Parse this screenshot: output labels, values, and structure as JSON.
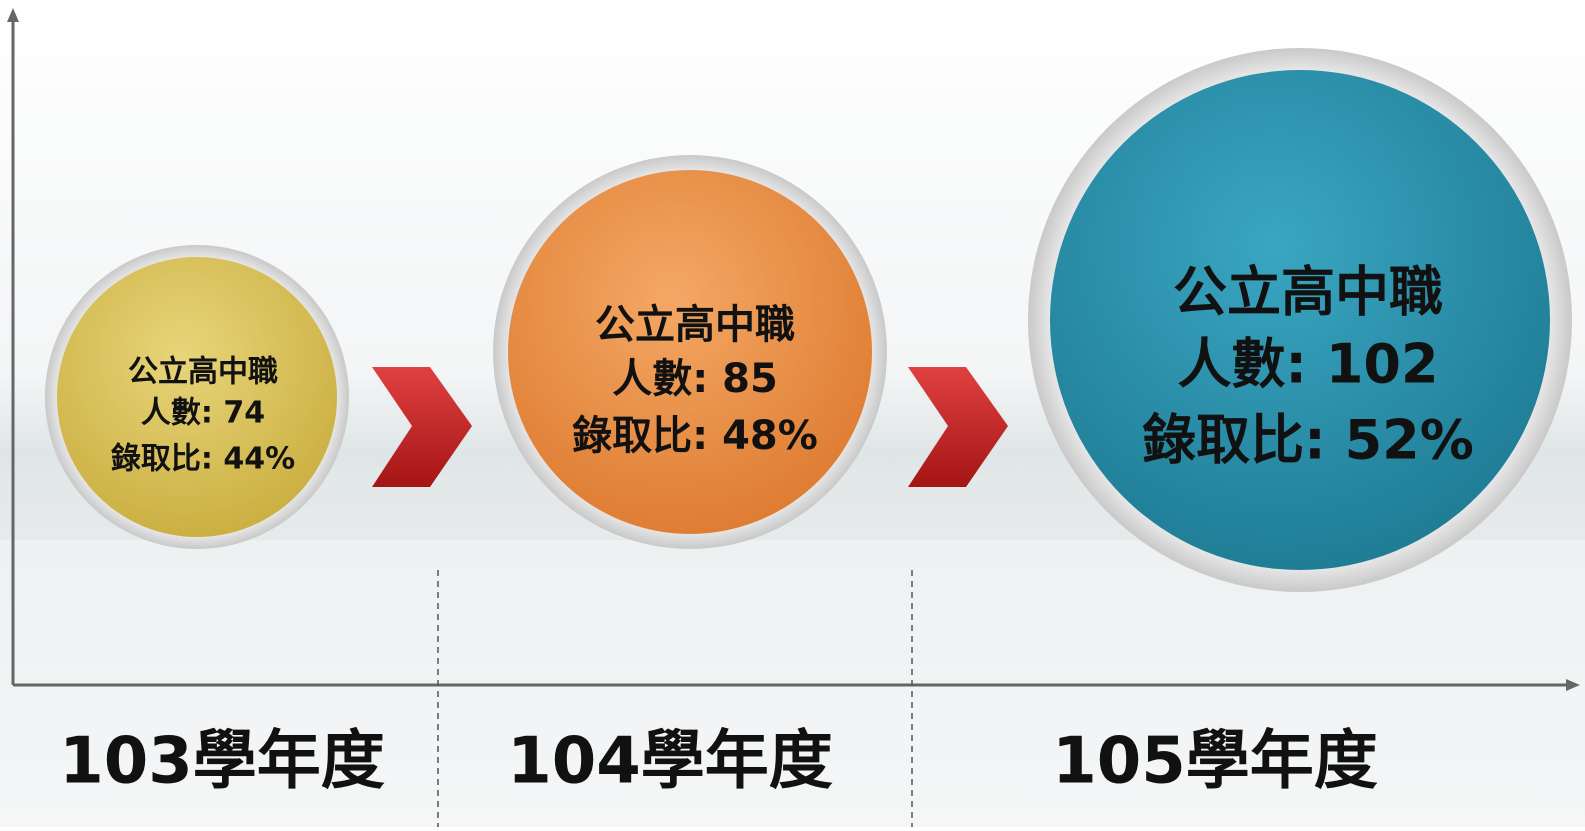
{
  "columns": [
    {
      "school": "公立高中職",
      "count": "人數: 74",
      "ratio": "錄取比: 44%",
      "year": "103學年度"
    },
    {
      "school": "公立高中職",
      "count": "人數: 85",
      "ratio": "錄取比: 48%",
      "year": "104學年度"
    },
    {
      "school": "公立高中職",
      "count": "人數: 102",
      "ratio": "錄取比: 52%",
      "year": "105學年度"
    }
  ]
}
